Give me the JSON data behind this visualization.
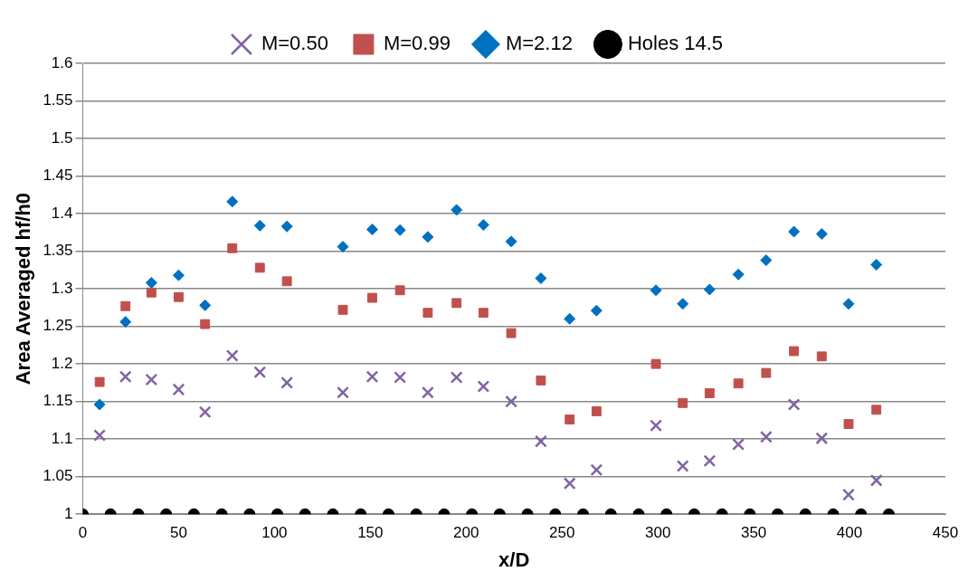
{
  "chart_data": {
    "type": "scatter",
    "xlabel": "x/D",
    "ylabel": "Area Averaged hf/h0",
    "xlim": [
      0,
      450
    ],
    "xticks": [
      0,
      50,
      100,
      150,
      200,
      250,
      300,
      350,
      400,
      450
    ],
    "ylim": [
      1,
      1.6
    ],
    "yticks": [
      1,
      1.05,
      1.1,
      1.15,
      1.2,
      1.25,
      1.3,
      1.35,
      1.4,
      1.45,
      1.5,
      1.55,
      1.6
    ],
    "grid": "y",
    "legend": "top",
    "series": [
      {
        "name": "M=0.50",
        "color": "#8064a2",
        "marker": "cross",
        "x": [
          8.8,
          22.3,
          35.8,
          50,
          63.8,
          78,
          92.4,
          106.5,
          135.7,
          151,
          165.5,
          180,
          195,
          209,
          223.5,
          239,
          254,
          268,
          299,
          313,
          327,
          342,
          356.5,
          371,
          385.5,
          399.5,
          414
        ],
        "values": [
          1.105,
          1.183,
          1.179,
          1.166,
          1.136,
          1.211,
          1.189,
          1.175,
          1.162,
          1.183,
          1.182,
          1.162,
          1.182,
          1.17,
          1.15,
          1.097,
          1.041,
          1.059,
          1.118,
          1.064,
          1.071,
          1.093,
          1.103,
          1.146,
          1.101,
          1.026,
          1.045
        ]
      },
      {
        "name": "M=0.99",
        "color": "#c0504d",
        "marker": "square",
        "x": [
          8.8,
          22.3,
          35.8,
          50,
          63.8,
          78,
          92.4,
          106.5,
          135.7,
          151,
          165.5,
          180,
          195,
          209,
          223.5,
          239,
          254,
          268,
          299,
          313,
          327,
          342,
          356.5,
          371,
          385.5,
          399.5,
          414
        ],
        "values": [
          1.176,
          1.277,
          1.295,
          1.289,
          1.253,
          1.354,
          1.328,
          1.31,
          1.272,
          1.288,
          1.298,
          1.268,
          1.281,
          1.268,
          1.241,
          1.178,
          1.126,
          1.137,
          1.2,
          1.148,
          1.161,
          1.174,
          1.188,
          1.217,
          1.21,
          1.12,
          1.139
        ]
      },
      {
        "name": "M=2.12",
        "color": "#0070c0",
        "marker": "diamond",
        "x": [
          8.8,
          22.3,
          35.8,
          50,
          63.8,
          78,
          92.4,
          106.5,
          135.7,
          151,
          165.5,
          180,
          195,
          209,
          223.5,
          239,
          254,
          268,
          299,
          313,
          327,
          342,
          356.5,
          371,
          385.5,
          399.5,
          414
        ],
        "values": [
          1.146,
          1.256,
          1.308,
          1.318,
          1.278,
          1.416,
          1.384,
          1.383,
          1.356,
          1.379,
          1.378,
          1.369,
          1.405,
          1.385,
          1.363,
          1.314,
          1.26,
          1.271,
          1.298,
          1.28,
          1.299,
          1.319,
          1.338,
          1.376,
          1.373,
          1.28,
          1.332
        ]
      },
      {
        "name": "Holes 14.5",
        "color": "#000000",
        "marker": "circle",
        "x": [
          0,
          14.5,
          29,
          43.5,
          58,
          72.5,
          87,
          101.5,
          116,
          130.5,
          145,
          159.5,
          174,
          188.5,
          203,
          217.5,
          232,
          246.5,
          261,
          275.5,
          290,
          304.5,
          319,
          333.5,
          348,
          362.5,
          377,
          391.5,
          406,
          420.5
        ],
        "values": [
          1,
          1,
          1,
          1,
          1,
          1,
          1,
          1,
          1,
          1,
          1,
          1,
          1,
          1,
          1,
          1,
          1,
          1,
          1,
          1,
          1,
          1,
          1,
          1,
          1,
          1,
          1,
          1,
          1,
          1
        ]
      }
    ]
  }
}
